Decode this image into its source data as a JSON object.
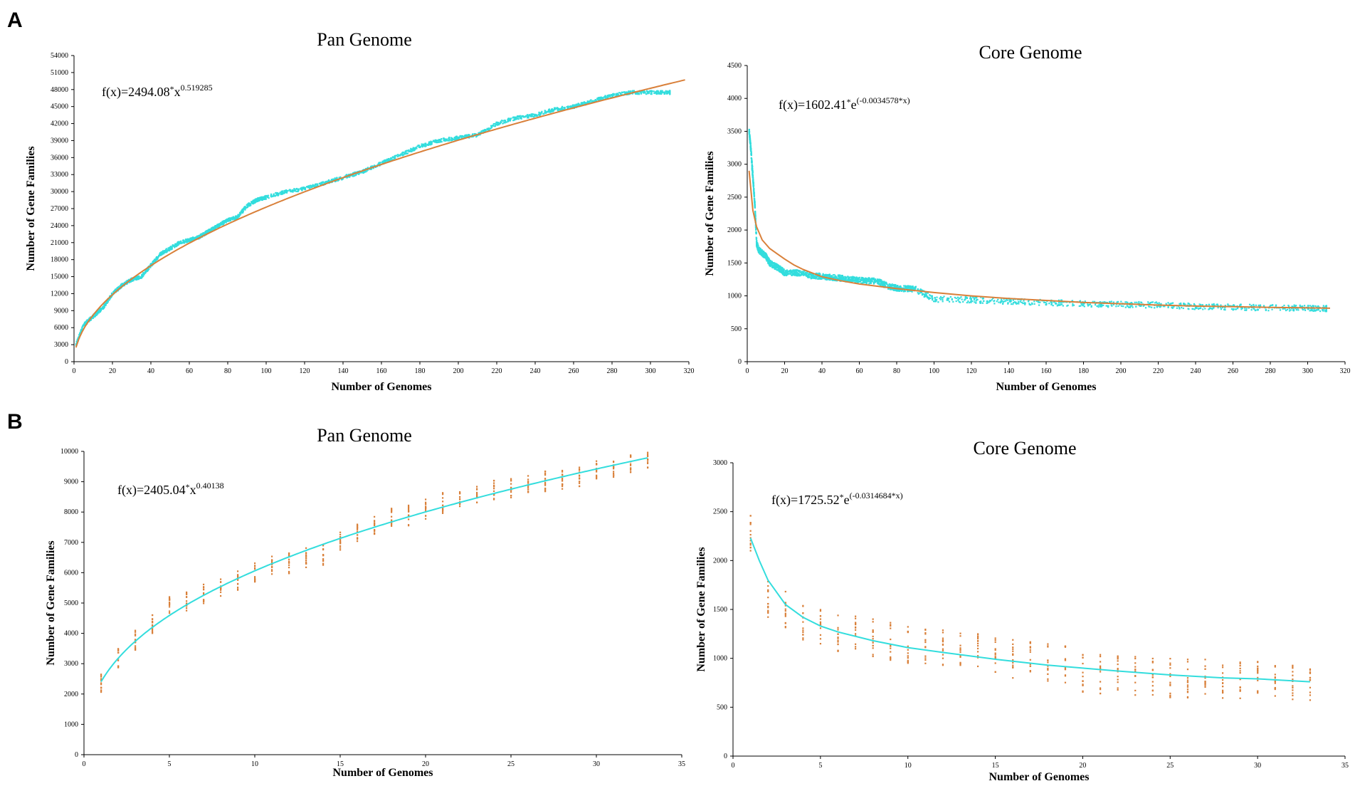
{
  "panels": [
    {
      "letter": "A"
    },
    {
      "letter": "B"
    }
  ],
  "colors": {
    "cyan": "#33dddd",
    "orange": "#d9803a",
    "axis": "#000000"
  },
  "chart_data": [
    {
      "id": "a-pan",
      "panel": "A",
      "type": "scatter",
      "title": "Pan Genome",
      "xlabel": "Number of Genomes",
      "ylabel": "Number of Gene Families",
      "xlim": [
        0,
        320
      ],
      "ylim": [
        0,
        54000
      ],
      "xticks": [
        0,
        20,
        40,
        60,
        80,
        100,
        120,
        140,
        160,
        180,
        200,
        220,
        240,
        260,
        280,
        300,
        320
      ],
      "yticks": [
        0,
        3000,
        6000,
        9000,
        12000,
        15000,
        18000,
        21000,
        24000,
        27000,
        30000,
        33000,
        36000,
        39000,
        42000,
        45000,
        48000,
        51000,
        54000
      ],
      "formula": {
        "base": "f(x)=2494.08",
        "op": "*",
        "var": "x",
        "exp": "0.519285"
      },
      "point_color": "#33dddd",
      "fit_color": "#d9803a",
      "fit": {
        "kind": "power",
        "a": 2494.08,
        "b": 0.519285,
        "x_range": [
          1,
          318
        ]
      },
      "points": {
        "x": [
          1,
          5,
          10,
          15,
          20,
          25,
          30,
          35,
          40,
          45,
          50,
          55,
          60,
          65,
          70,
          75,
          80,
          85,
          90,
          95,
          100,
          110,
          120,
          130,
          140,
          150,
          160,
          170,
          180,
          190,
          200,
          210,
          220,
          230,
          240,
          250,
          260,
          270,
          280,
          290,
          300,
          310
        ],
        "y": [
          3000,
          6500,
          8000,
          9500,
          12000,
          13500,
          14500,
          15000,
          17000,
          19000,
          20000,
          21000,
          21500,
          22000,
          23000,
          24000,
          25000,
          25500,
          27500,
          28500,
          29000,
          30000,
          30500,
          31500,
          32500,
          33500,
          35000,
          36500,
          38000,
          39000,
          39500,
          40000,
          42000,
          43000,
          43500,
          44500,
          45000,
          46000,
          47000,
          47500,
          47500,
          47500
        ],
        "spread": 600
      }
    },
    {
      "id": "a-core",
      "panel": "A",
      "type": "scatter",
      "title": "Core Genome",
      "xlabel": "Number of Genomes",
      "ylabel": "Number of Gene Families",
      "xlim": [
        0,
        320
      ],
      "ylim": [
        0,
        4500
      ],
      "xticks": [
        0,
        20,
        40,
        60,
        80,
        100,
        120,
        140,
        160,
        180,
        200,
        220,
        240,
        260,
        280,
        300,
        320
      ],
      "yticks": [
        0,
        500,
        1000,
        1500,
        2000,
        2500,
        3000,
        3500,
        4000,
        4500
      ],
      "formula": {
        "base": "f(x)=1602.41",
        "op": "*",
        "var": "e",
        "exp": "(-0.0034578*x)"
      },
      "point_color": "#33dddd",
      "fit_color": "#d9803a",
      "fit": {
        "kind": "points",
        "x": [
          1,
          3,
          5,
          8,
          12,
          16,
          20,
          25,
          30,
          40,
          50,
          60,
          80,
          100,
          120,
          140,
          160,
          180,
          200,
          220,
          240,
          260,
          280,
          300,
          312
        ],
        "y": [
          2900,
          2300,
          2050,
          1850,
          1720,
          1640,
          1560,
          1470,
          1400,
          1290,
          1230,
          1180,
          1110,
          1050,
          1000,
          960,
          930,
          900,
          880,
          860,
          845,
          835,
          825,
          818,
          812
        ]
      },
      "points": {
        "x": [
          1,
          2,
          3,
          4,
          5,
          6,
          8,
          10,
          12,
          15,
          18,
          20,
          25,
          30,
          35,
          40,
          45,
          50,
          55,
          60,
          65,
          70,
          75,
          80,
          85,
          90,
          100,
          120,
          140,
          160,
          180,
          200,
          220,
          240,
          260,
          280,
          300,
          310
        ],
        "y": [
          3500,
          3200,
          2800,
          2400,
          1800,
          1700,
          1650,
          1600,
          1500,
          1450,
          1400,
          1350,
          1350,
          1350,
          1300,
          1300,
          1280,
          1270,
          1250,
          1240,
          1230,
          1220,
          1150,
          1120,
          1110,
          1100,
          950,
          940,
          920,
          900,
          880,
          870,
          860,
          840,
          830,
          820,
          815,
          810
        ],
        "spread": 90
      }
    },
    {
      "id": "b-pan",
      "panel": "B",
      "type": "scatter",
      "title": "Pan Genome",
      "xlabel": "Number of Genomes",
      "ylabel": "Number of Gene Families",
      "xlim": [
        0,
        35
      ],
      "ylim": [
        0,
        10000
      ],
      "xticks": [
        0,
        5,
        10,
        15,
        20,
        25,
        30,
        35
      ],
      "yticks": [
        0,
        1000,
        2000,
        3000,
        4000,
        5000,
        6000,
        7000,
        8000,
        9000,
        10000
      ],
      "formula": {
        "base": "f(x)=2405.04",
        "op": "*",
        "var": "x",
        "exp": "0.40138"
      },
      "point_color": "#d9803a",
      "fit_color": "#33dddd",
      "fit": {
        "kind": "power",
        "a": 2405.04,
        "b": 0.40138,
        "x_range": [
          1,
          33
        ]
      },
      "points": {
        "x": [
          1,
          2,
          3,
          4,
          5,
          6,
          7,
          8,
          9,
          10,
          11,
          12,
          13,
          14,
          15,
          16,
          17,
          18,
          19,
          20,
          21,
          22,
          23,
          24,
          25,
          26,
          27,
          28,
          29,
          30,
          31,
          32,
          33
        ],
        "y": [
          2400,
          3200,
          3800,
          4300,
          4900,
          5100,
          5300,
          5500,
          5700,
          6000,
          6200,
          6300,
          6500,
          6600,
          7000,
          7300,
          7500,
          7800,
          7900,
          8100,
          8300,
          8500,
          8600,
          8700,
          8800,
          8900,
          9000,
          9100,
          9200,
          9400,
          9500,
          9600,
          9800
        ],
        "spread": 350
      }
    },
    {
      "id": "b-core",
      "panel": "B",
      "type": "scatter",
      "title": "Core Genome",
      "xlabel": "Number of Genomes",
      "ylabel": "Number of Gene Families",
      "xlim": [
        0,
        35
      ],
      "ylim": [
        0,
        3000
      ],
      "xticks": [
        0,
        5,
        10,
        15,
        20,
        25,
        30,
        35
      ],
      "yticks": [
        0,
        500,
        1000,
        1500,
        2000,
        2500,
        3000
      ],
      "formula": {
        "base": "f(x)=1725.52",
        "op": "*",
        "var": "e",
        "exp": "(-0.0314684*x)"
      },
      "point_color": "#d9803a",
      "fit_color": "#33dddd",
      "fit": {
        "kind": "points",
        "x": [
          1,
          1.5,
          2,
          3,
          4,
          5,
          6,
          8,
          10,
          12,
          15,
          18,
          20,
          22,
          25,
          28,
          30,
          33
        ],
        "y": [
          2230,
          2000,
          1800,
          1550,
          1420,
          1330,
          1270,
          1180,
          1110,
          1060,
          990,
          930,
          900,
          870,
          830,
          800,
          790,
          760
        ]
      },
      "points": {
        "x": [
          1,
          2,
          3,
          4,
          5,
          6,
          7,
          8,
          9,
          10,
          11,
          12,
          13,
          14,
          15,
          16,
          17,
          18,
          19,
          20,
          21,
          22,
          23,
          24,
          25,
          26,
          27,
          28,
          29,
          30,
          31,
          32,
          33
        ],
        "y": [
          2300,
          1600,
          1500,
          1350,
          1300,
          1250,
          1250,
          1220,
          1180,
          1150,
          1130,
          1120,
          1100,
          1080,
          1060,
          1000,
          980,
          960,
          950,
          850,
          840,
          830,
          820,
          810,
          800,
          790,
          790,
          780,
          780,
          770,
          770,
          760,
          750
        ],
        "spread": 200
      }
    }
  ]
}
